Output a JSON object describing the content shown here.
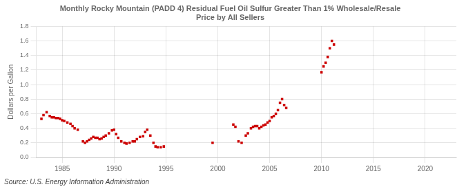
{
  "chart_data": {
    "type": "scatter",
    "title": "Monthly Rocky Mountain (PADD 4) Residual Fuel Oil Sulfur Greater Than 1% Wholesale/Resale\nPrice by All Sellers",
    "ylabel": "Dollars per Gallon",
    "source": "Source: U.S. Energy Information Administration",
    "color": "#cc0000",
    "marker": "square",
    "grid": true,
    "xlim": [
      1982.5,
      2023
    ],
    "ylim": [
      0.0,
      1.8
    ],
    "xticks": [
      1985,
      1990,
      1995,
      2000,
      2005,
      2010,
      2015,
      2020
    ],
    "yticks": [
      {
        "value": 0.0,
        "label": "0.0"
      },
      0.2,
      0.4,
      0.6,
      0.8,
      {
        "value": 1.0,
        "label": "1.0"
      },
      1.2,
      1.4,
      1.6,
      1.8
    ],
    "x": [
      1983.0,
      1983.2,
      1983.5,
      1983.8,
      1984.0,
      1984.2,
      1984.4,
      1984.6,
      1984.8,
      1985.0,
      1985.2,
      1985.5,
      1985.8,
      1986.0,
      1986.2,
      1986.5,
      1987.0,
      1987.2,
      1987.4,
      1987.6,
      1987.8,
      1988.0,
      1988.2,
      1988.4,
      1988.6,
      1988.8,
      1989.0,
      1989.2,
      1989.5,
      1989.8,
      1990.0,
      1990.2,
      1990.4,
      1990.7,
      1991.0,
      1991.2,
      1991.5,
      1991.8,
      1992.0,
      1992.2,
      1992.5,
      1992.8,
      1993.0,
      1993.2,
      1993.5,
      1993.8,
      1994.0,
      1994.2,
      1994.5,
      1994.8,
      1999.5,
      2001.5,
      2001.7,
      2002.0,
      2002.3,
      2002.7,
      2002.9,
      2003.2,
      2003.4,
      2003.6,
      2003.8,
      2004.0,
      2004.2,
      2004.4,
      2004.6,
      2004.8,
      2005.0,
      2005.2,
      2005.4,
      2005.6,
      2005.8,
      2006.0,
      2006.2,
      2006.4,
      2006.6,
      2010.0,
      2010.2,
      2010.4,
      2010.6,
      2010.8,
      2011.0,
      2011.2
    ],
    "values": [
      0.53,
      0.58,
      0.62,
      0.57,
      0.55,
      0.55,
      0.54,
      0.54,
      0.53,
      0.51,
      0.5,
      0.48,
      0.46,
      0.43,
      0.4,
      0.38,
      0.22,
      0.2,
      0.22,
      0.24,
      0.26,
      0.28,
      0.27,
      0.27,
      0.25,
      0.26,
      0.28,
      0.3,
      0.33,
      0.37,
      0.38,
      0.32,
      0.27,
      0.22,
      0.2,
      0.19,
      0.2,
      0.22,
      0.22,
      0.25,
      0.28,
      0.29,
      0.35,
      0.38,
      0.3,
      0.2,
      0.15,
      0.14,
      0.14,
      0.15,
      0.2,
      0.45,
      0.42,
      0.22,
      0.2,
      0.3,
      0.33,
      0.4,
      0.42,
      0.43,
      0.43,
      0.4,
      0.42,
      0.44,
      0.45,
      0.48,
      0.5,
      0.55,
      0.57,
      0.6,
      0.65,
      0.75,
      0.8,
      0.72,
      0.68,
      1.17,
      1.25,
      1.3,
      1.38,
      1.5,
      1.6,
      1.55
    ]
  }
}
